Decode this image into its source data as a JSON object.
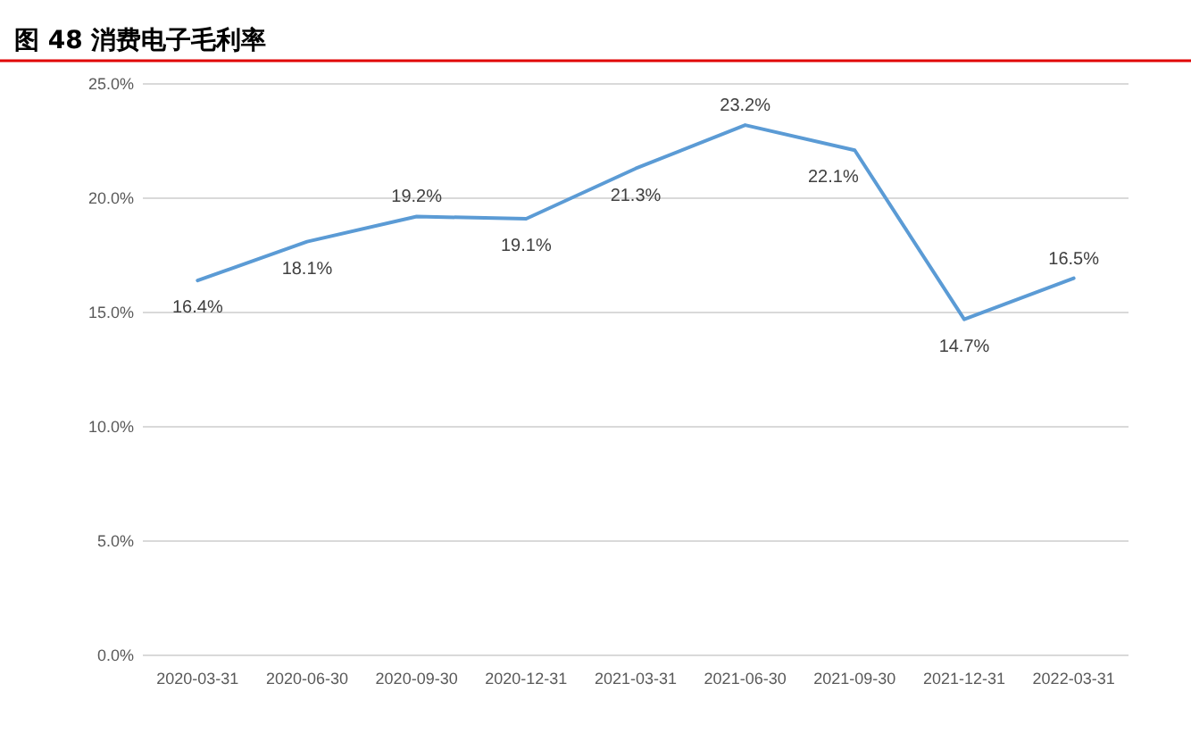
{
  "chart_data": {
    "type": "line",
    "title": "图 48  消费电子毛利率",
    "categories": [
      "2020-03-31",
      "2020-06-30",
      "2020-09-30",
      "2020-12-31",
      "2021-03-31",
      "2021-06-30",
      "2021-09-30",
      "2021-12-31",
      "2022-03-31"
    ],
    "series": [
      {
        "color": "#5b9bd5",
        "values": [
          16.4,
          18.1,
          19.2,
          19.1,
          21.3,
          23.2,
          22.1,
          14.7,
          16.5
        ],
        "value_labels": [
          "16.4%",
          "18.1%",
          "19.2%",
          "19.1%",
          "21.3%",
          "23.2%",
          "22.1%",
          "14.7%",
          "16.5%"
        ]
      }
    ],
    "ylim": [
      0,
      25
    ],
    "yticks": [
      {
        "value": 0,
        "label": "0.0%"
      },
      {
        "value": 5,
        "label": "5.0%"
      },
      {
        "value": 10,
        "label": "10.0%"
      },
      {
        "value": 15,
        "label": "15.0%"
      },
      {
        "value": 20,
        "label": "20.0%"
      },
      {
        "value": 25,
        "label": "25.0%"
      }
    ],
    "grid": "y",
    "marker": "none",
    "line_style": "solid"
  }
}
